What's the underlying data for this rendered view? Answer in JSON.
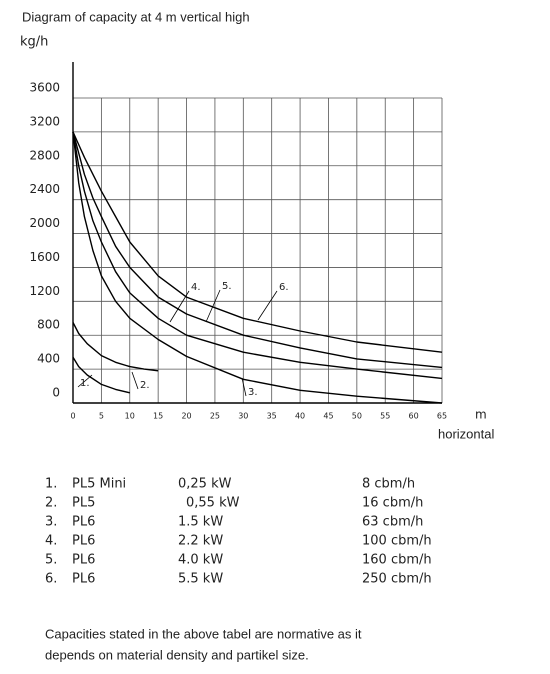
{
  "chart_data": {
    "type": "line",
    "title": "Diagram of capacity at 4 m vertical high",
    "ylabel": "kg/h",
    "xlabel": "m",
    "xlabel_sub": "horizontal",
    "xlim": [
      0,
      65
    ],
    "ylim": [
      0,
      3600
    ],
    "xticks": [
      0,
      5,
      10,
      15,
      20,
      25,
      30,
      35,
      40,
      45,
      50,
      55,
      60,
      65
    ],
    "yticks": [
      0,
      400,
      800,
      1200,
      1600,
      2000,
      2400,
      2800,
      3200,
      3600
    ],
    "grid": true,
    "series": [
      {
        "name": "1.",
        "color": "#000000",
        "x": [
          0,
          1,
          2.5,
          5,
          7.5,
          10
        ],
        "values": [
          540,
          430,
          330,
          220,
          160,
          120
        ]
      },
      {
        "name": "2.",
        "color": "#000000",
        "x": [
          0,
          1,
          2.5,
          5,
          7.5,
          10,
          12.5,
          15
        ],
        "values": [
          950,
          820,
          700,
          560,
          480,
          430,
          400,
          380
        ]
      },
      {
        "name": "3.",
        "color": "#000000",
        "x": [
          0,
          1,
          2,
          3.5,
          5,
          7.5,
          10,
          15,
          20,
          30,
          40,
          50,
          65
        ],
        "values": [
          3200,
          2600,
          2200,
          1800,
          1500,
          1200,
          1000,
          750,
          550,
          280,
          150,
          80,
          0
        ]
      },
      {
        "name": "4.",
        "color": "#000000",
        "x": [
          0,
          1,
          2,
          3.5,
          5,
          7.5,
          10,
          15,
          20,
          30,
          40,
          50,
          65
        ],
        "values": [
          3200,
          2800,
          2500,
          2150,
          1900,
          1550,
          1300,
          1000,
          800,
          600,
          480,
          400,
          290
        ]
      },
      {
        "name": "5.",
        "color": "#000000",
        "x": [
          0,
          1,
          2,
          3.5,
          5,
          7.5,
          10,
          15,
          20,
          30,
          40,
          50,
          65
        ],
        "values": [
          3200,
          2950,
          2700,
          2420,
          2200,
          1850,
          1600,
          1250,
          1050,
          800,
          650,
          520,
          420
        ]
      },
      {
        "name": "6.",
        "color": "#000000",
        "x": [
          0,
          1,
          2,
          3.5,
          5,
          7.5,
          10,
          15,
          20,
          30,
          40,
          50,
          65
        ],
        "values": [
          3200,
          3050,
          2900,
          2700,
          2500,
          2200,
          1900,
          1500,
          1250,
          1000,
          850,
          720,
          600
        ]
      }
    ]
  },
  "table": {
    "rows": [
      [
        "1.",
        "PL5 Mini",
        "0,25 kW",
        "8 cbm/h"
      ],
      [
        "2.",
        "PL5",
        "0,55 kW",
        "16 cbm/h"
      ],
      [
        "3.",
        "PL6",
        "1.5 kW",
        "63 cbm/h"
      ],
      [
        "4.",
        "PL6",
        "2.2 kW",
        "100 cbm/h"
      ],
      [
        "5.",
        "PL6",
        "4.0 kW",
        "160 cbm/h"
      ],
      [
        "6.",
        "PL6",
        "5.5 kW",
        "250 cbm/h"
      ]
    ]
  },
  "note": [
    "Capacities stated in the above tabel are normative as it",
    "depends on material density and partikel size."
  ]
}
